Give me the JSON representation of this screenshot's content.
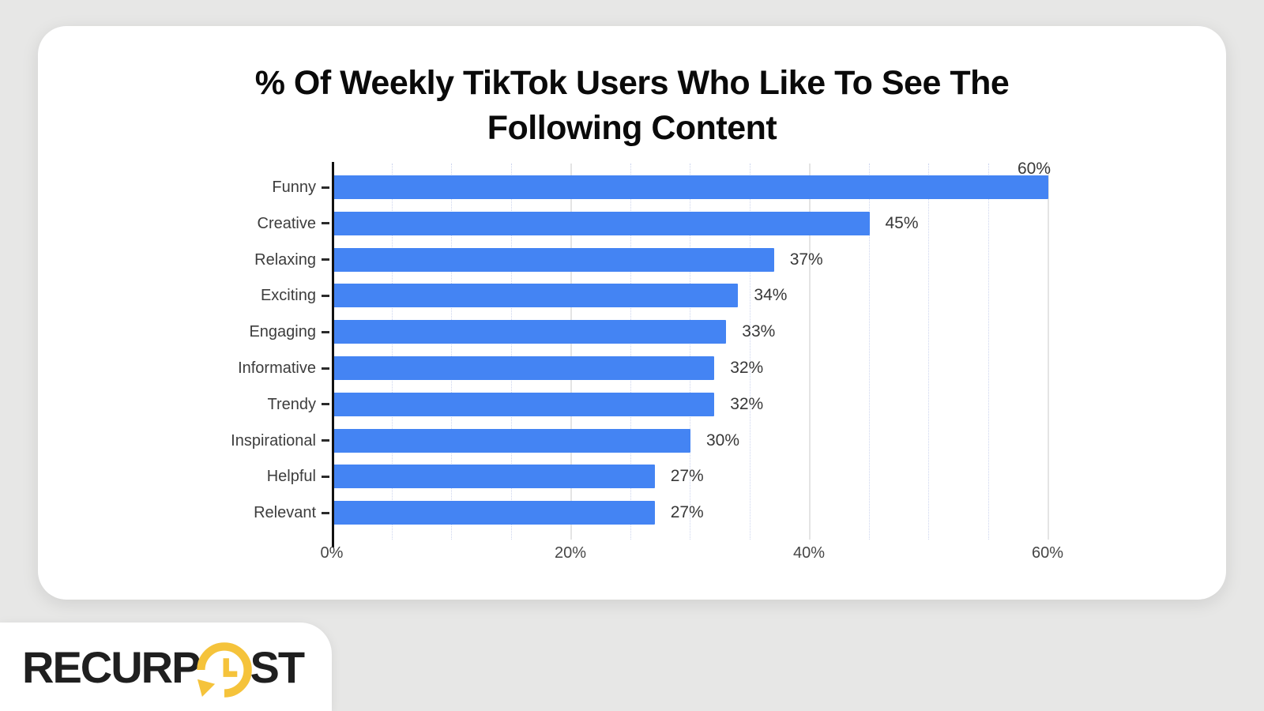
{
  "page": {
    "background_color": "#e7e7e6",
    "card_color": "#ffffff"
  },
  "chart_data": {
    "type": "bar",
    "orientation": "horizontal",
    "title": "% Of Weekly TikTok Users Who Like To See The Following Content",
    "title_lines": [
      "% Of Weekly TikTok Users Who Like To See The",
      "Following Content"
    ],
    "categories": [
      "Funny",
      "Creative",
      "Relaxing",
      "Exciting",
      "Engaging",
      "Informative",
      "Trendy",
      "Inspirational",
      "Helpful",
      "Relevant"
    ],
    "values": [
      60,
      45,
      37,
      34,
      33,
      32,
      32,
      30,
      27,
      27
    ],
    "value_labels": [
      "60%",
      "45%",
      "37%",
      "34%",
      "33%",
      "32%",
      "32%",
      "30%",
      "27%",
      "27%"
    ],
    "first_label_above_bar": true,
    "x_ticks": [
      {
        "value": 0,
        "label": "0%"
      },
      {
        "value": 20,
        "label": "20%"
      },
      {
        "value": 40,
        "label": "40%"
      },
      {
        "value": 60,
        "label": "60%"
      }
    ],
    "xlim": [
      0,
      62
    ],
    "grid": true,
    "grid_minor_step": 5,
    "grid_major_step": 20,
    "bar_color": "#4484F3",
    "axis_color": "#111111",
    "label_color": "#3d3d3d"
  },
  "logo": {
    "text_before": "RECURP",
    "text_after": "ST",
    "icon": "clock-refresh-icon",
    "icon_color": "#F5C33B",
    "text_color": "#1F1F1F"
  }
}
